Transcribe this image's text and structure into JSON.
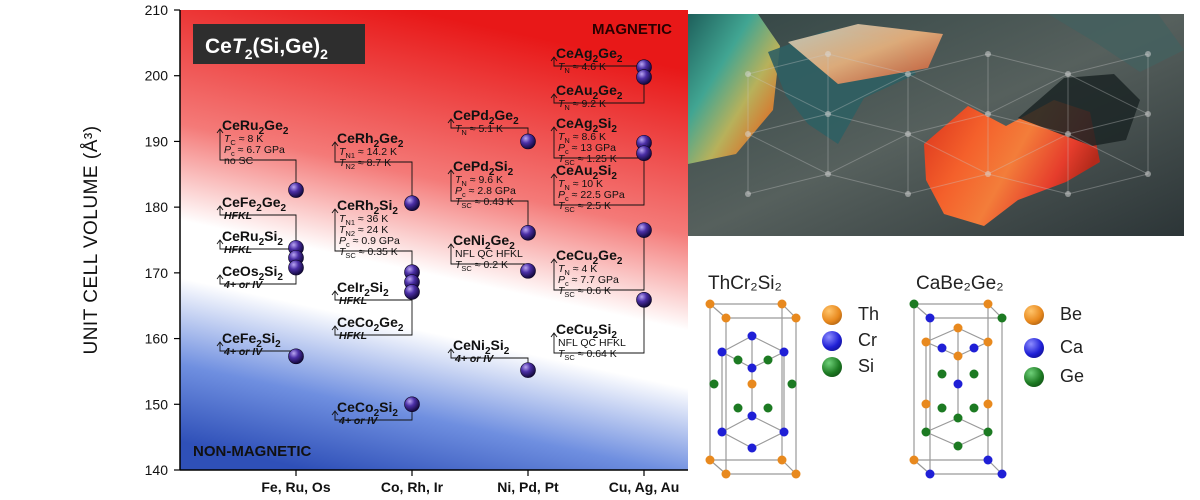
{
  "chart_data": {
    "type": "scatter",
    "title": "CeT2(Si,Ge)2",
    "ylabel": "UNIT CELL VOLUME (Å³)",
    "ylim": [
      140,
      210
    ],
    "yticks": [
      140,
      150,
      160,
      170,
      180,
      190,
      200,
      210
    ],
    "categories": [
      "Fe, Ru, Os",
      "Co, Rh, Ir",
      "Ni, Pd, Pt",
      "Cu, Ag, Au"
    ],
    "region_labels": {
      "top": "MAGNETIC",
      "bottom": "NON-MAGNETIC"
    },
    "points": [
      {
        "compound": "CeRu₂Ge₂",
        "category": "Fe, Ru, Os",
        "y": 182.6,
        "props": [
          "T_C ≈ 8 K",
          "P_c ≈ 6.7 GPa",
          "no SC"
        ]
      },
      {
        "compound": "CeFe₂Ge₂",
        "category": "Fe, Ru, Os",
        "y": 173.8,
        "props": [
          "HFKL"
        ]
      },
      {
        "compound": "CeRu₂Si₂",
        "category": "Fe, Ru, Os",
        "y": 172.3,
        "props": [
          "HFKL"
        ]
      },
      {
        "compound": "CeOs₂Si₂",
        "category": "Fe, Ru, Os",
        "y": 170.8,
        "props": [
          "4+ or IV"
        ]
      },
      {
        "compound": "CeFe₂Si₂",
        "category": "Fe, Ru, Os",
        "y": 157.3,
        "props": [
          "4+ or IV"
        ]
      },
      {
        "compound": "CeRh₂Ge₂",
        "category": "Co, Rh, Ir",
        "y": 180.6,
        "props": [
          "T_N1 ≈ 14.2 K",
          "T_N2 ≈ 8.7 K"
        ]
      },
      {
        "compound": "CeRh₂Si₂",
        "category": "Co, Rh, Ir",
        "y": 170.1,
        "props": [
          "T_N1 ≈ 36 K",
          "T_N2 ≈ 24 K",
          "P_c ≈ 0.9 GPa",
          "T_SC ≈ 0.35 K"
        ]
      },
      {
        "compound": "CeIr₂Si₂",
        "category": "Co, Rh, Ir",
        "y": 168.6,
        "props": [
          "HFKL"
        ]
      },
      {
        "compound": "CeCo₂Ge₂",
        "category": "Co, Rh, Ir",
        "y": 167.1,
        "props": [
          "HFKL"
        ]
      },
      {
        "compound": "CeCo₂Si₂",
        "category": "Co, Rh, Ir",
        "y": 150.0,
        "props": [
          "4+ or IV"
        ]
      },
      {
        "compound": "CePd₂Ge₂",
        "category": "Ni, Pd, Pt",
        "y": 190.0,
        "props": [
          "T_N ≈ 5.1 K"
        ]
      },
      {
        "compound": "CePd₂Si₂",
        "category": "Ni, Pd, Pt",
        "y": 176.1,
        "props": [
          "T_N ≈ 9.6 K",
          "P_c ≈ 2.8 GPa",
          "T_SC ≈ 0.43 K"
        ]
      },
      {
        "compound": "CeNi₂Ge₂",
        "category": "Ni, Pd, Pt",
        "y": 170.3,
        "props": [
          "NFL QC HFKL",
          "T_SC ≈ 0.2 K"
        ]
      },
      {
        "compound": "CeNi₂Si₂",
        "category": "Ni, Pd, Pt",
        "y": 155.2,
        "props": [
          "4+ or IV"
        ]
      },
      {
        "compound": "CeAg₂Ge₂",
        "category": "Cu, Ag, Au",
        "y": 201.3,
        "props": [
          "T_N ≈ 4.6 K"
        ]
      },
      {
        "compound": "CeAu₂Ge₂",
        "category": "Cu, Ag, Au",
        "y": 199.8,
        "props": [
          "T_N ≈ 9.2 K"
        ]
      },
      {
        "compound": "CeAg₂Si₂",
        "category": "Cu, Ag, Au",
        "y": 189.8,
        "props": [
          "T_N ≈ 8.6 K",
          "P_c ≈ 13 GPa",
          "T_SC ≈ 1.25 K"
        ]
      },
      {
        "compound": "CeAu₂Si₂",
        "category": "Cu, Ag, Au",
        "y": 188.2,
        "props": [
          "T_N ≈ 10 K",
          "P_c ≈ 22.5 GPa",
          "T_SC ≈ 2.5 K"
        ]
      },
      {
        "compound": "CeCu₂Ge₂",
        "category": "Cu, Ag, Au",
        "y": 176.5,
        "props": [
          "T_N ≈ 4 K",
          "P_c ≈ 7.7 GPa",
          "T_SC ≈ 0.6 K"
        ]
      },
      {
        "compound": "CeCu₂Si₂",
        "category": "Cu, Ag, Au",
        "y": 165.9,
        "props": [
          "NFL QC HFKL",
          "T_SC ≈ 0.64 K"
        ]
      }
    ]
  },
  "crystals": [
    {
      "title": "ThCr₂Si₂",
      "legend": [
        {
          "label": "Th",
          "color": "#e8891e"
        },
        {
          "label": "Cr",
          "color": "#1f1fd6"
        },
        {
          "label": "Si",
          "color": "#1c7a22"
        }
      ]
    },
    {
      "title": "CaBe₂Ge₂",
      "legend": [
        {
          "label": "Be",
          "color": "#e8891e"
        },
        {
          "label": "Ca",
          "color": "#1f1fd6"
        },
        {
          "label": "Ge",
          "color": "#1c7a22"
        }
      ]
    }
  ]
}
